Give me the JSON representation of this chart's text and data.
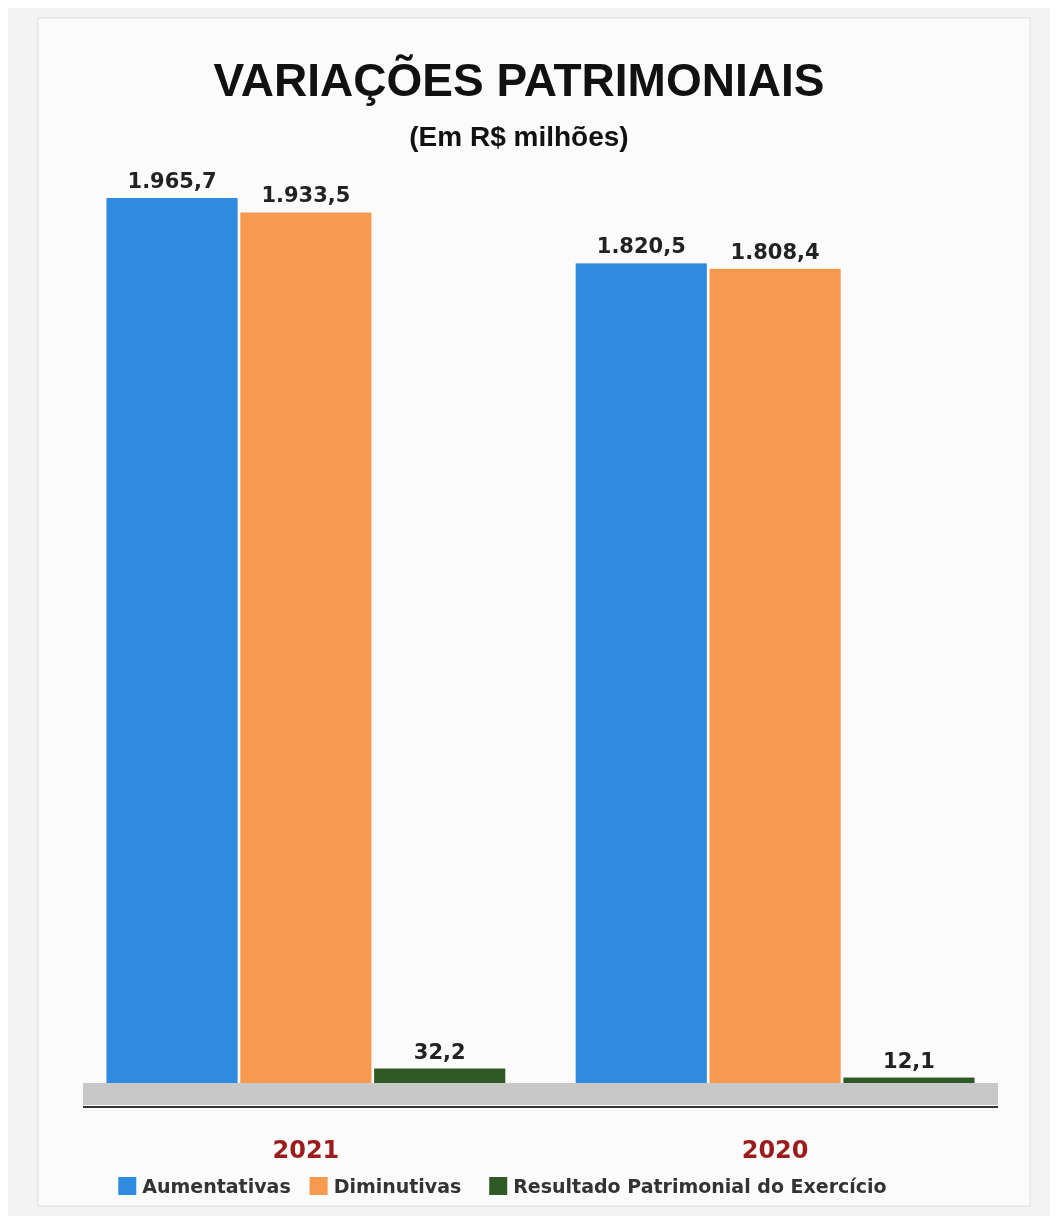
{
  "chart_data": {
    "type": "bar",
    "title": "VARIAÇÕES PATRIMONIAIS",
    "subtitle": "(Em R$ milhões)",
    "categories": [
      "2021",
      "2020"
    ],
    "series": [
      {
        "name": "Aumentativas",
        "color": "#2f8be0",
        "values": [
          1965.7,
          1820.5
        ],
        "value_labels": [
          "1.965,7",
          "1.820,5"
        ]
      },
      {
        "name": "Diminutivas",
        "color": "#f79a4f",
        "values": [
          1933.5,
          1808.4
        ],
        "value_labels": [
          "1.933,5",
          "1.808,4"
        ]
      },
      {
        "name": "Resultado Patrimonial do Exercício",
        "color": "#2f5a25",
        "values": [
          32.2,
          12.1
        ],
        "value_labels": [
          "32,2",
          "12,1"
        ]
      }
    ],
    "legend": "bottom"
  }
}
